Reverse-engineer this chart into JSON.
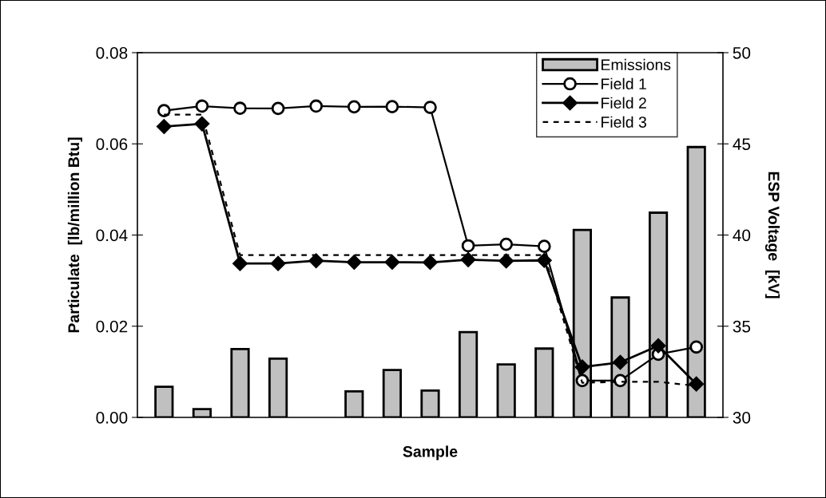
{
  "chart_data": {
    "type": "bar",
    "xlabel": "Sample",
    "ylabel": "Particulate  [lb/million Btu]",
    "y2label": "ESP Voltage  [kV]",
    "categories": [
      null,
      null,
      null,
      null,
      null,
      null,
      null,
      null,
      null,
      null,
      null,
      null,
      null,
      null,
      null
    ],
    "series": [
      {
        "name": "Emissions",
        "color": "#c0c0c0",
        "values": [
          0.0067,
          0.0018,
          0.015,
          0.0129,
          null,
          0.0057,
          0.0104,
          0.0059,
          0.0187,
          0.0116,
          0.0151,
          0.0411,
          0.0263,
          0.0449,
          0.0593
        ]
      },
      {
        "name": "Field 1",
        "type": "line",
        "axis": "y2",
        "color": "#000000",
        "marker": "circle",
        "line_style": "solid",
        "values": [
          46.82,
          47.07,
          46.95,
          46.94,
          47.07,
          47.03,
          47.04,
          47.0,
          39.41,
          39.49,
          39.38,
          32.02,
          32.02,
          33.46,
          33.86
        ]
      },
      {
        "name": "Field 2",
        "type": "line",
        "axis": "y2",
        "color": "#000000",
        "marker": "diamond",
        "line_style": "solid",
        "values": [
          45.95,
          46.1,
          38.44,
          38.44,
          38.59,
          38.51,
          38.51,
          38.5,
          38.65,
          38.58,
          38.61,
          32.76,
          33.02,
          33.93,
          31.83
        ]
      },
      {
        "name": "Field 3",
        "type": "line",
        "axis": "y2",
        "color": "#000000",
        "marker": "none",
        "line_style": "dashed",
        "values": [
          46.6,
          46.6,
          38.9,
          38.9,
          38.9,
          38.9,
          38.9,
          38.9,
          38.9,
          38.9,
          38.9,
          31.9,
          31.95,
          31.95,
          31.73
        ]
      }
    ],
    "ylim": [
      0,
      0.08
    ],
    "yticks": [
      {
        "value": 0,
        "label": "0.00"
      },
      {
        "value": 0.02,
        "label": "0.02"
      },
      {
        "value": 0.04,
        "label": "0.04"
      },
      {
        "value": 0.06,
        "label": "0.06"
      },
      {
        "value": 0.08,
        "label": "0.08"
      }
    ],
    "y2lim": [
      30,
      50
    ],
    "y2ticks": [
      30,
      35,
      40,
      45,
      50
    ],
    "grid": false,
    "legend": "top right"
  }
}
